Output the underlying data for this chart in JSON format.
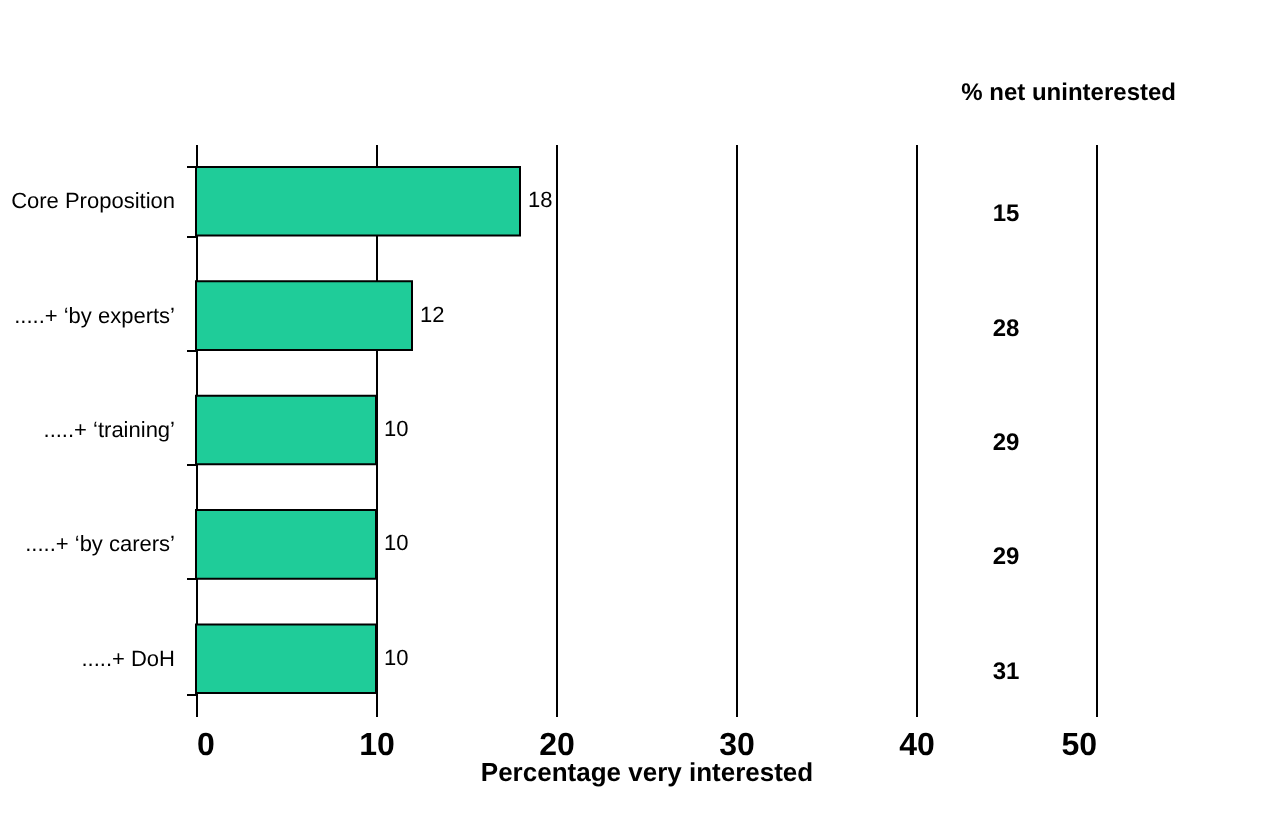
{
  "chart_data": {
    "type": "bar",
    "orientation": "horizontal",
    "categories": [
      "Core Proposition",
      ".....+ ‘by experts’",
      ".....+ ‘training’",
      ".....+ ‘by carers’",
      ".....+ DoH"
    ],
    "values": [
      18,
      12,
      10,
      10,
      10
    ],
    "color": "#1fcc99",
    "xlim": [
      0,
      50
    ],
    "xticks": [
      0,
      10,
      20,
      30,
      40,
      50
    ],
    "grid": "x",
    "data_labels": true,
    "xlabel": "Percentage very interested",
    "annotations": [
      "% net uninterested",
      "15",
      "28",
      "29",
      "29",
      "31"
    ]
  }
}
